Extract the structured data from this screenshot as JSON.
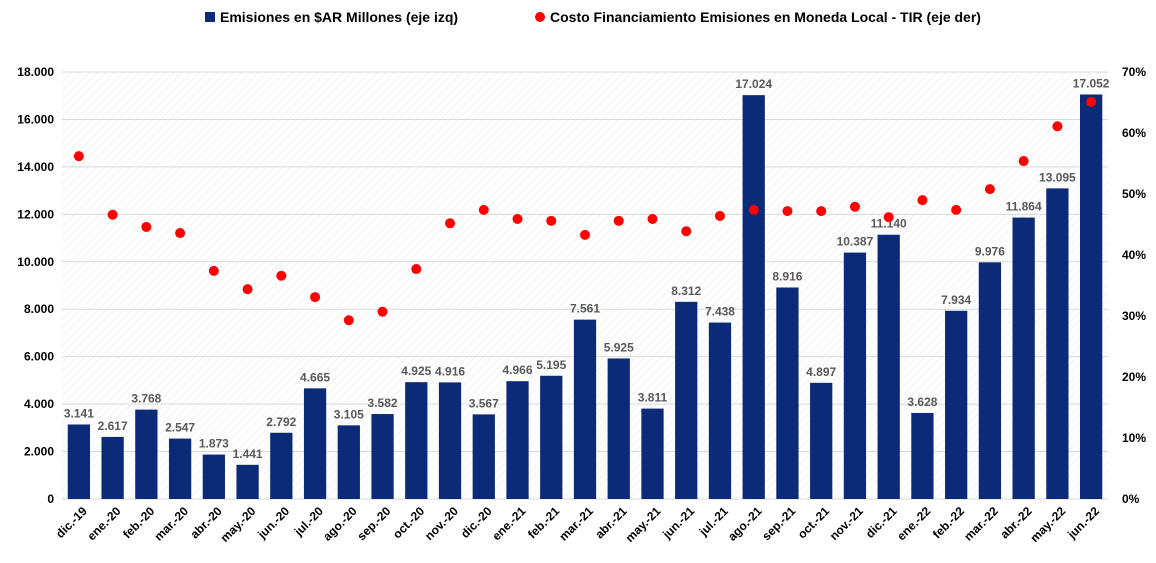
{
  "chart_data": {
    "type": "bar",
    "categories": [
      "dic.-19",
      "ene.-20",
      "feb.-20",
      "mar.-20",
      "abr.-20",
      "may.-20",
      "jun.-20",
      "jul.-20",
      "ago.-20",
      "sep.-20",
      "oct.-20",
      "nov.-20",
      "dic.-20",
      "ene.-21",
      "feb.-21",
      "mar.-21",
      "abr.-21",
      "may.-21",
      "jun.-21",
      "jul.-21",
      "ago.-21",
      "sep.-21",
      "oct.-21",
      "nov.-21",
      "dic.-21",
      "ene.-22",
      "feb.-22",
      "mar.-22",
      "abr.-22",
      "may.-22",
      "jun.-22"
    ],
    "series": [
      {
        "name": "Emisiones en $AR Millones (eje izq)",
        "type": "bar",
        "color": "#0b2a78",
        "values": [
          3141,
          2617,
          3768,
          2547,
          1873,
          1441,
          2792,
          4665,
          3105,
          3582,
          4925,
          4916,
          3567,
          4966,
          5195,
          7561,
          5925,
          3811,
          8312,
          7438,
          17024,
          8916,
          4897,
          10387,
          11140,
          3628,
          7934,
          9976,
          11864,
          13095,
          17052
        ],
        "value_labels": [
          "3.141",
          "2.617",
          "3.768",
          "2.547",
          "1.873",
          "1.441",
          "2.792",
          "4.665",
          "3.105",
          "3.582",
          "4.925",
          "4.916",
          "3.567",
          "4.966",
          "5.195",
          "7.561",
          "5.925",
          "3.811",
          "8.312",
          "7.438",
          "17.024",
          "8.916",
          "4.897",
          "10.387",
          "11.140",
          "3.628",
          "7.934",
          "9.976",
          "11.864",
          "13.095",
          "17.052"
        ]
      },
      {
        "name": "Costo Financiamiento Emisiones en Moneda Local - TIR (eje der)",
        "type": "scatter",
        "axis": "y2",
        "color": "#ff0000",
        "values": [
          56.2,
          46.6,
          44.6,
          43.6,
          37.4,
          34.4,
          36.6,
          33.1,
          29.3,
          30.7,
          37.7,
          45.2,
          47.4,
          45.9,
          45.6,
          43.3,
          45.6,
          45.9,
          43.9,
          46.4,
          47.4,
          47.2,
          47.2,
          47.9,
          46.2,
          49.0,
          47.4,
          50.8,
          55.4,
          61.1,
          65.1
        ]
      }
    ],
    "ylim": [
      0,
      18000
    ],
    "yticks": [
      0,
      {
        "value": 2000,
        "label": "2.000"
      },
      {
        "value": 4000,
        "label": "4.000"
      },
      {
        "value": 6000,
        "label": "6.000"
      },
      {
        "value": 8000,
        "label": "8.000"
      },
      {
        "value": 10000,
        "label": "10.000"
      },
      {
        "value": 12000,
        "label": "12.000"
      },
      {
        "value": 14000,
        "label": "14.000"
      },
      {
        "value": 16000,
        "label": "16.000"
      },
      {
        "value": 18000,
        "label": "18.000"
      }
    ],
    "y2lim": [
      0,
      70
    ],
    "y2ticks": [
      {
        "value": 0,
        "label": "0%"
      },
      {
        "value": 10,
        "label": "10%"
      },
      {
        "value": 20,
        "label": "20%"
      },
      {
        "value": 30,
        "label": "30%"
      },
      {
        "value": 40,
        "label": "40%"
      },
      {
        "value": 50,
        "label": "50%"
      },
      {
        "value": 60,
        "label": "60%"
      },
      {
        "value": 70,
        "label": "70%"
      }
    ],
    "grid": true,
    "legend": "top"
  }
}
